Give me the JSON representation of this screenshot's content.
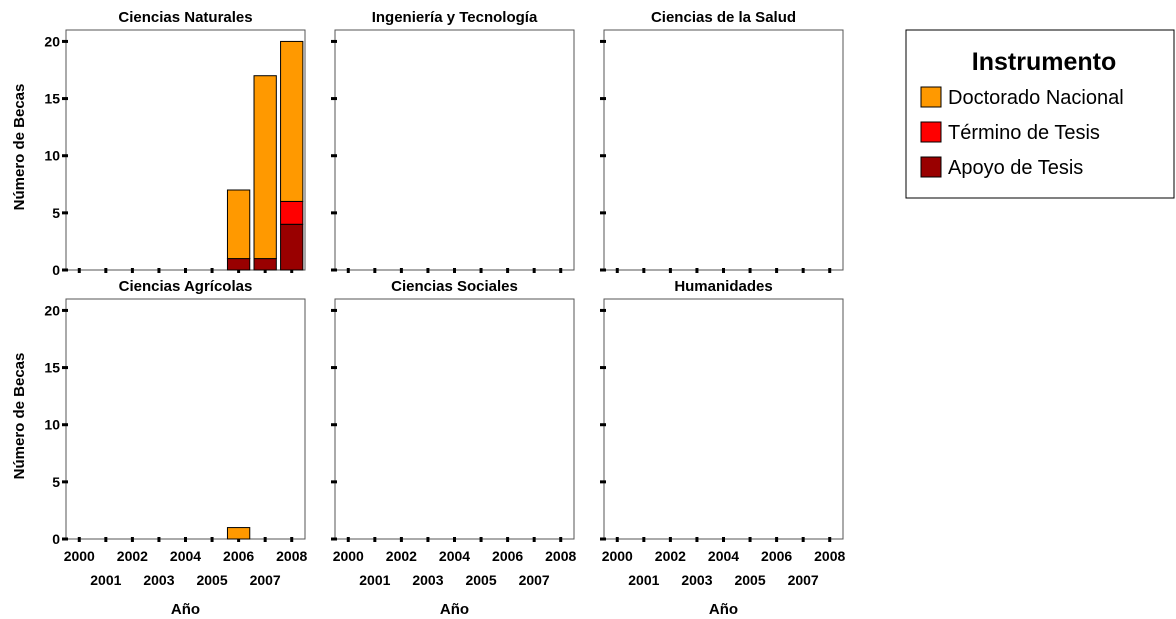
{
  "chart_data": {
    "type": "bar",
    "stacked": true,
    "facet_columns": 3,
    "x": [
      "2000",
      "2001",
      "2002",
      "2003",
      "2004",
      "2005",
      "2006",
      "2007",
      "2008"
    ],
    "x_tick_labels_top": [
      "2000",
      "2002",
      "2004",
      "2006",
      "2008"
    ],
    "x_tick_labels_bottom": [
      "2001",
      "2003",
      "2005",
      "2007"
    ],
    "xlabel": "Año",
    "ylabel": "Número de Becas",
    "ylim": [
      0,
      21
    ],
    "yticks": [
      "0",
      "5",
      "10",
      "15",
      "20"
    ],
    "ytick_values": [
      0,
      5,
      10,
      15,
      20
    ],
    "grid": false,
    "legend": {
      "title": "Instrumento",
      "placement": "right",
      "items": [
        {
          "label": "Doctorado Nacional",
          "color": "#FF9900"
        },
        {
          "label": "Término de Tesis",
          "color": "#FF0000"
        },
        {
          "label": "Apoyo de Tesis",
          "color": "#990000"
        }
      ]
    },
    "series_keys": [
      "apoyo",
      "termino",
      "doctorado"
    ],
    "series_colors": {
      "apoyo": "#990000",
      "termino": "#FF0000",
      "doctorado": "#FF9900"
    },
    "panels": [
      {
        "title": "Ciencias Naturales",
        "series": {
          "apoyo": [
            0,
            0,
            0,
            0,
            0,
            0,
            1,
            1,
            4
          ],
          "termino": [
            0,
            0,
            0,
            0,
            0,
            0,
            0,
            0,
            2
          ],
          "doctorado": [
            0,
            0,
            0,
            0,
            0,
            0,
            6,
            16,
            14
          ]
        }
      },
      {
        "title": "Ingeniería y Tecnología",
        "series": {
          "apoyo": [
            0,
            0,
            0,
            0,
            0,
            0,
            0,
            0,
            0
          ],
          "termino": [
            0,
            0,
            0,
            0,
            0,
            0,
            0,
            0,
            0
          ],
          "doctorado": [
            0,
            0,
            0,
            0,
            0,
            0,
            0,
            0,
            0
          ]
        }
      },
      {
        "title": "Ciencias de la Salud",
        "series": {
          "apoyo": [
            0,
            0,
            0,
            0,
            0,
            0,
            0,
            0,
            0
          ],
          "termino": [
            0,
            0,
            0,
            0,
            0,
            0,
            0,
            0,
            0
          ],
          "doctorado": [
            0,
            0,
            0,
            0,
            0,
            0,
            0,
            0,
            0
          ]
        }
      },
      {
        "title": "Ciencias Agrícolas",
        "series": {
          "apoyo": [
            0,
            0,
            0,
            0,
            0,
            0,
            0,
            0,
            0
          ],
          "termino": [
            0,
            0,
            0,
            0,
            0,
            0,
            0,
            0,
            0
          ],
          "doctorado": [
            0,
            0,
            0,
            0,
            0,
            0,
            1,
            0,
            0
          ]
        }
      },
      {
        "title": "Ciencias Sociales",
        "series": {
          "apoyo": [
            0,
            0,
            0,
            0,
            0,
            0,
            0,
            0,
            0
          ],
          "termino": [
            0,
            0,
            0,
            0,
            0,
            0,
            0,
            0,
            0
          ],
          "doctorado": [
            0,
            0,
            0,
            0,
            0,
            0,
            0,
            0,
            0
          ]
        }
      },
      {
        "title": "Humanidades",
        "series": {
          "apoyo": [
            0,
            0,
            0,
            0,
            0,
            0,
            0,
            0,
            0
          ],
          "termino": [
            0,
            0,
            0,
            0,
            0,
            0,
            0,
            0,
            0
          ],
          "doctorado": [
            0,
            0,
            0,
            0,
            0,
            0,
            0,
            0,
            0
          ]
        }
      }
    ]
  }
}
